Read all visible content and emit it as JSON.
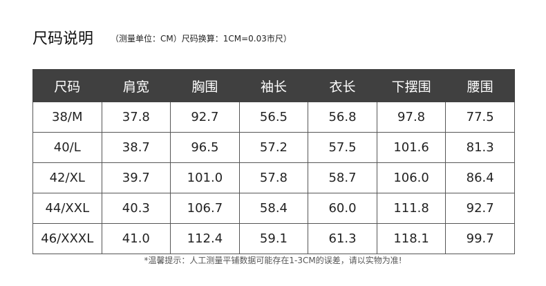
{
  "title": "尺码说明",
  "subtitle": "（测量单位：CM）尺码换算：1CM=0.03市尺）",
  "table": {
    "headers": [
      "尺码",
      "肩宽",
      "胸围",
      "袖长",
      "衣长",
      "下摆围",
      "腰围"
    ],
    "rows": [
      [
        "38/M",
        "37.8",
        "92.7",
        "56.5",
        "56.8",
        "97.8",
        "77.5"
      ],
      [
        "40/L",
        "38.7",
        "96.5",
        "57.2",
        "57.5",
        "101.6",
        "81.3"
      ],
      [
        "42/XL",
        "39.7",
        "101.0",
        "57.8",
        "58.7",
        "106.0",
        "86.4"
      ],
      [
        "44/XXL",
        "40.3",
        "106.7",
        "58.4",
        "60.0",
        "111.8",
        "92.7"
      ],
      [
        "46/XXXL",
        "41.0",
        "112.4",
        "59.1",
        "61.3",
        "118.1",
        "99.7"
      ]
    ]
  },
  "footer": "*温馨提示：人工测量平铺数据可能存在1-3CM的误差，请以实物为准!",
  "colors": {
    "header_bg": "#404040",
    "header_text": "#ffffff",
    "border": "#555555"
  }
}
